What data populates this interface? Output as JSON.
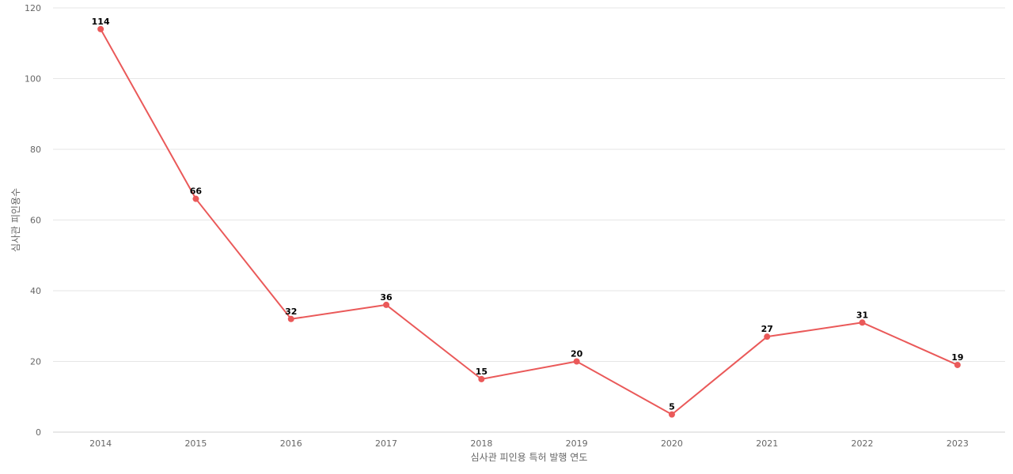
{
  "chart_data": {
    "type": "line",
    "categories": [
      "2014",
      "2015",
      "2016",
      "2017",
      "2018",
      "2019",
      "2020",
      "2021",
      "2022",
      "2023"
    ],
    "series": [
      {
        "values": [
          114,
          66,
          32,
          36,
          15,
          20,
          5,
          27,
          31,
          19
        ]
      }
    ],
    "data_labels": [
      "114",
      "66",
      "32",
      "36",
      "15",
      "20",
      "5",
      "27",
      "31",
      "19"
    ],
    "xlabel": "심사관 피인용 특허 발행 연도",
    "ylabel": "심사관 피인용수",
    "ylim": [
      0,
      120
    ],
    "yticks": [
      "0",
      "20",
      "40",
      "60",
      "80",
      "100",
      "120"
    ],
    "grid": true,
    "legend": "none",
    "line_color": "#ea5959"
  }
}
